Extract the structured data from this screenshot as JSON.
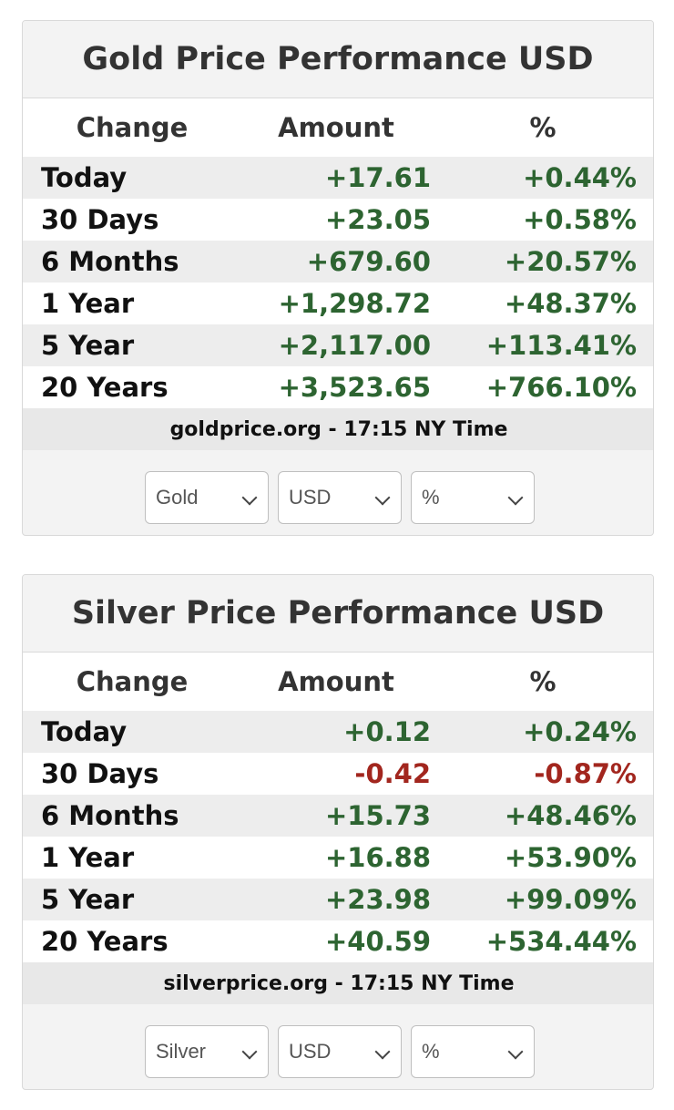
{
  "gold": {
    "title": "Gold Price Performance USD",
    "headers": {
      "change": "Change",
      "amount": "Amount",
      "percent": "%"
    },
    "rows": [
      {
        "label": "Today",
        "amount": "+17.61",
        "percent": "+0.44%",
        "direction": "up"
      },
      {
        "label": "30 Days",
        "amount": "+23.05",
        "percent": "+0.58%",
        "direction": "up"
      },
      {
        "label": "6 Months",
        "amount": "+679.60",
        "percent": "+20.57%",
        "direction": "up"
      },
      {
        "label": "1 Year",
        "amount": "+1,298.72",
        "percent": "+48.37%",
        "direction": "up"
      },
      {
        "label": "5 Year",
        "amount": "+2,117.00",
        "percent": "+113.41%",
        "direction": "up"
      },
      {
        "label": "20 Years",
        "amount": "+3,523.65",
        "percent": "+766.10%",
        "direction": "up"
      }
    ],
    "footer": "goldprice.org - 17:15 NY Time",
    "selects": {
      "metal": "Gold",
      "currency": "USD",
      "unit": "%"
    }
  },
  "silver": {
    "title": "Silver Price Performance USD",
    "headers": {
      "change": "Change",
      "amount": "Amount",
      "percent": "%"
    },
    "rows": [
      {
        "label": "Today",
        "amount": "+0.12",
        "percent": "+0.24%",
        "direction": "up"
      },
      {
        "label": "30 Days",
        "amount": "-0.42",
        "percent": "-0.87%",
        "direction": "down"
      },
      {
        "label": "6 Months",
        "amount": "+15.73",
        "percent": "+48.46%",
        "direction": "up"
      },
      {
        "label": "1 Year",
        "amount": "+16.88",
        "percent": "+53.90%",
        "direction": "up"
      },
      {
        "label": "5 Year",
        "amount": "+23.98",
        "percent": "+99.09%",
        "direction": "up"
      },
      {
        "label": "20 Years",
        "amount": "+40.59",
        "percent": "+534.44%",
        "direction": "up"
      }
    ],
    "footer": "silverprice.org - 17:15 NY Time",
    "selects": {
      "metal": "Silver",
      "currency": "USD",
      "unit": "%"
    }
  },
  "colors": {
    "positive": "#2d6431",
    "negative": "#a2261e"
  }
}
